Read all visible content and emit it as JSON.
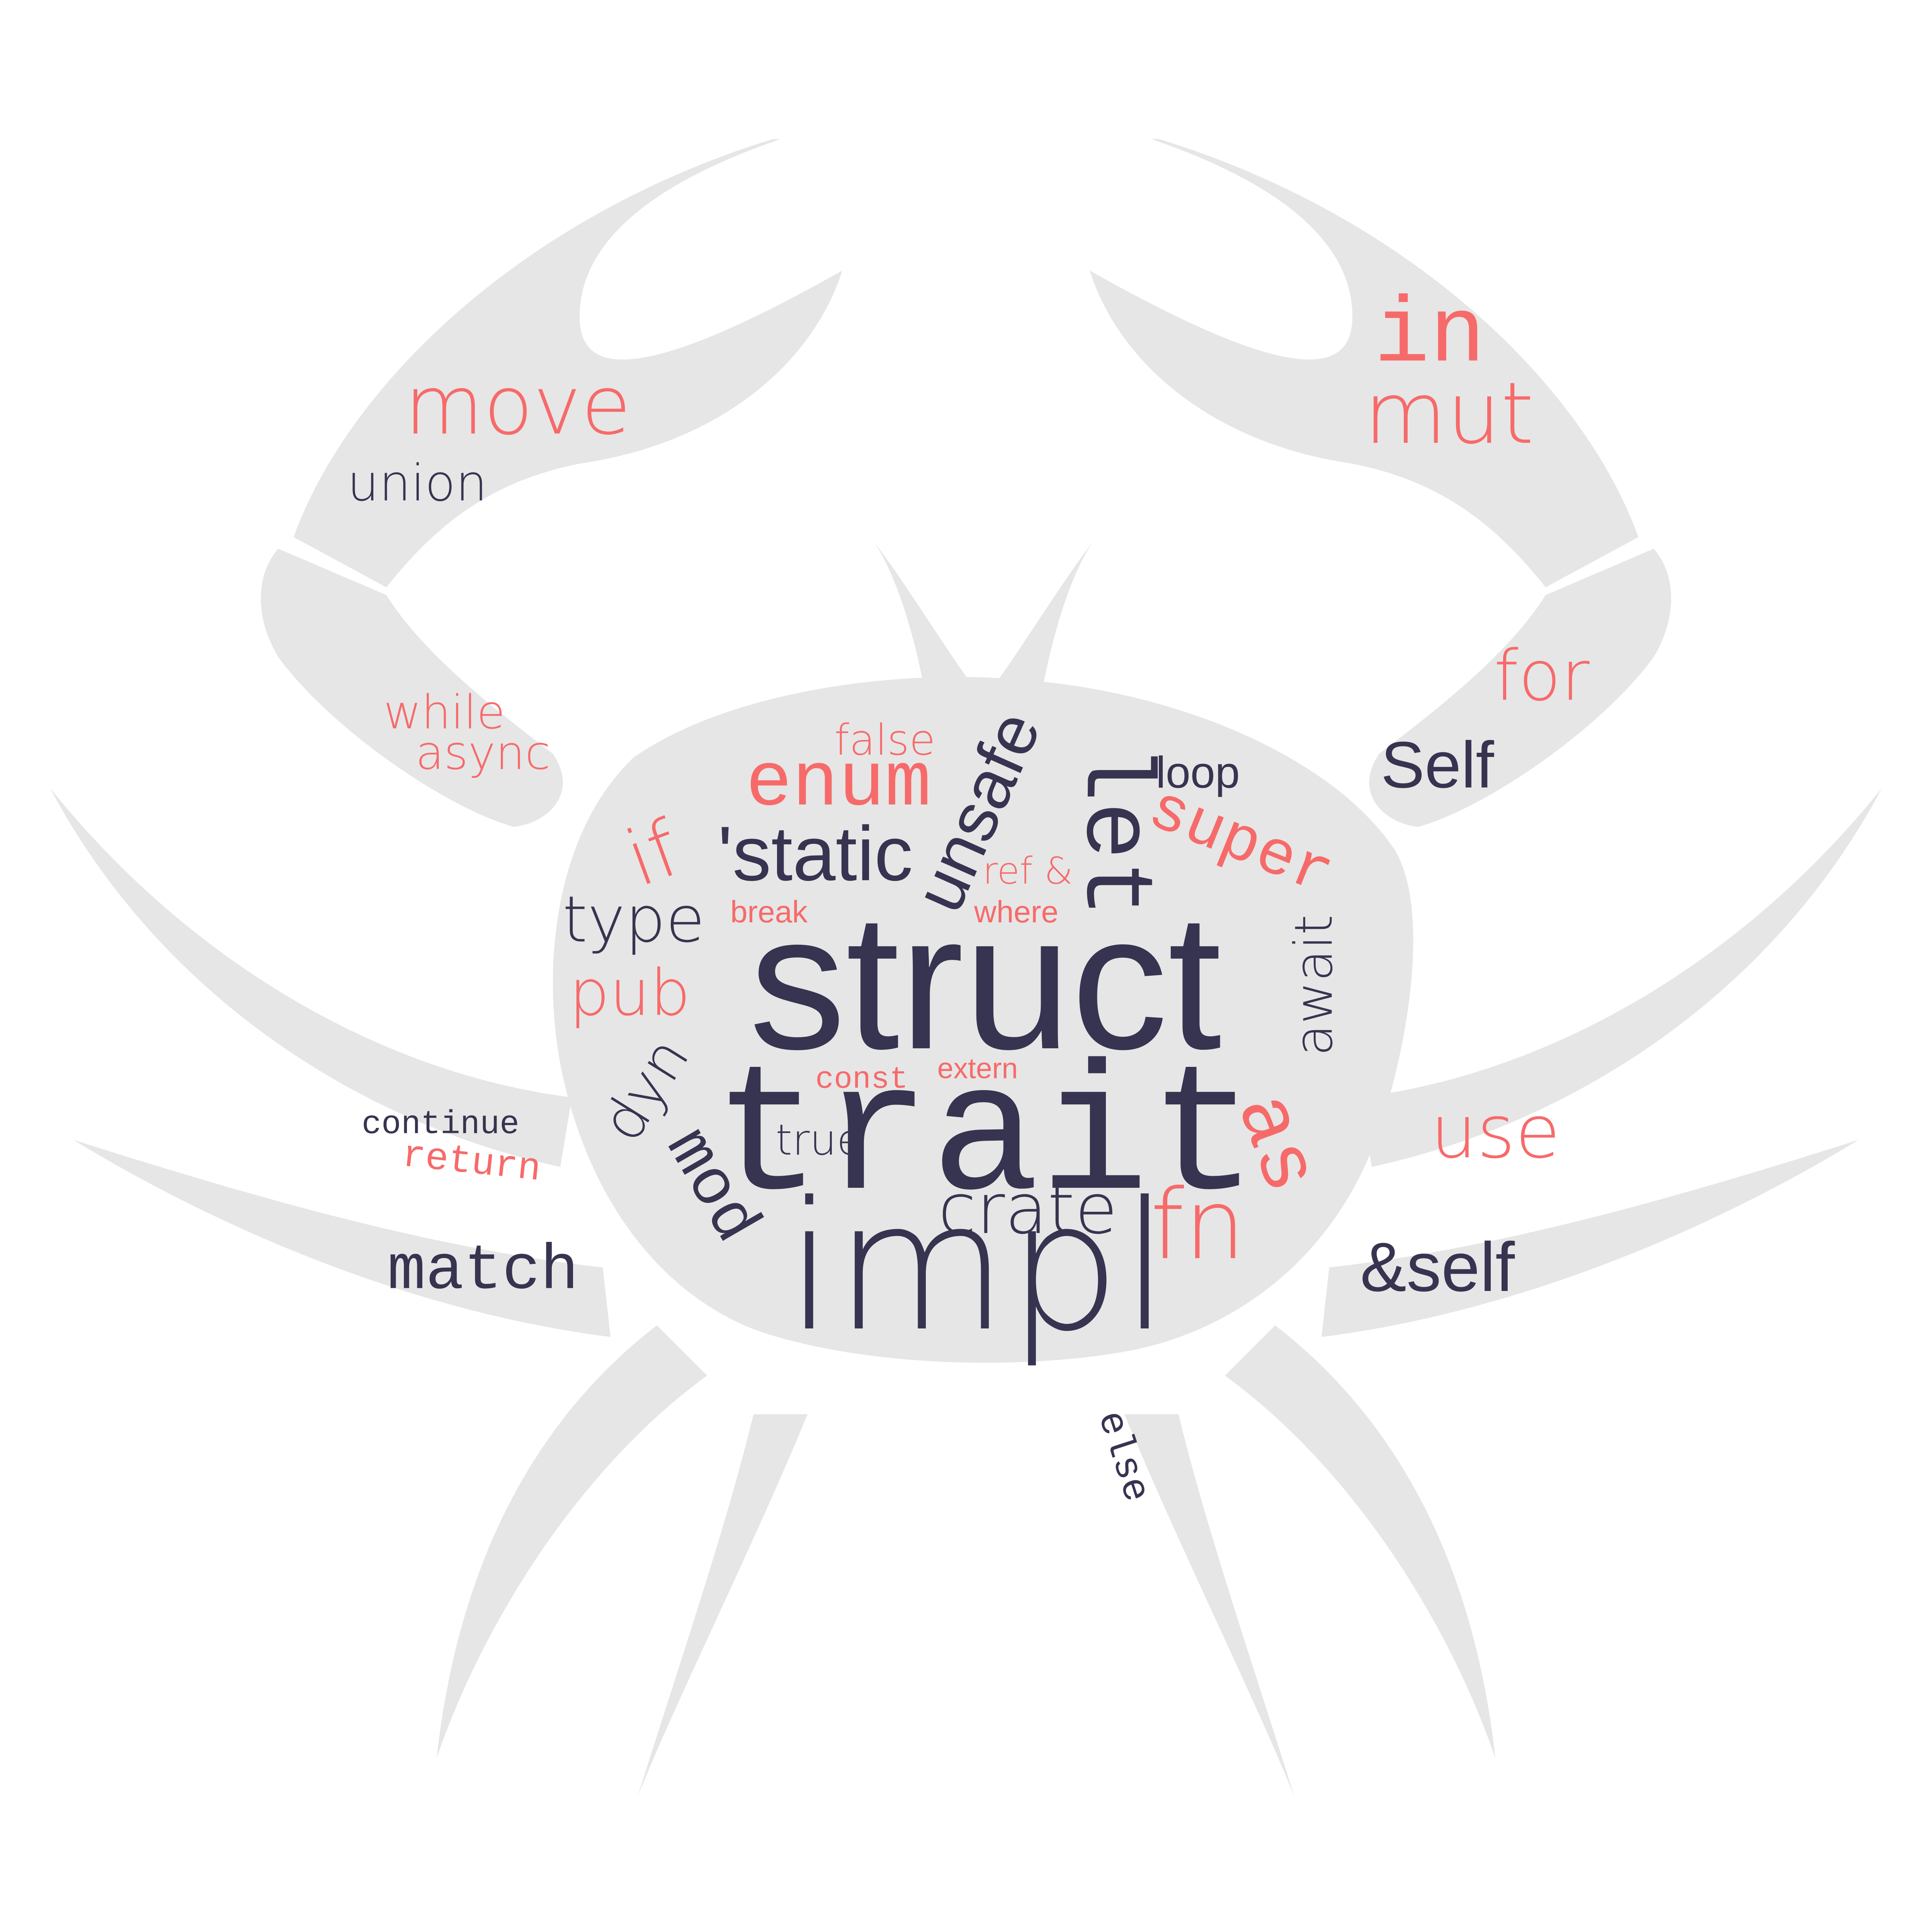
{
  "colors": {
    "background": "#ffffff",
    "crab_silhouette": "#e6e6e6",
    "dark_word": "#363450",
    "accent_word": "#f76a6a"
  },
  "silhouette": {
    "shape": "crab",
    "icon": "crab-silhouette"
  },
  "words": [
    {
      "id": "struct",
      "text": "struct",
      "tone": "dark"
    },
    {
      "id": "trait",
      "text": "trait",
      "tone": "dark"
    },
    {
      "id": "impl",
      "text": "impl",
      "tone": "dark"
    },
    {
      "id": "let",
      "text": "let",
      "tone": "dark"
    },
    {
      "id": "static",
      "text": "'static",
      "tone": "dark"
    },
    {
      "id": "unsafe",
      "text": "unsafe",
      "tone": "dark"
    },
    {
      "id": "enum",
      "text": "enum",
      "tone": "accent"
    },
    {
      "id": "if",
      "text": "if",
      "tone": "accent"
    },
    {
      "id": "type",
      "text": "type",
      "tone": "dark"
    },
    {
      "id": "pub",
      "text": "pub",
      "tone": "accent"
    },
    {
      "id": "dyn",
      "text": "dyn",
      "tone": "dark"
    },
    {
      "id": "mod",
      "text": "mod",
      "tone": "dark"
    },
    {
      "id": "crate",
      "text": "crate",
      "tone": "dark"
    },
    {
      "id": "fn",
      "text": "fn",
      "tone": "accent"
    },
    {
      "id": "as",
      "text": "as",
      "tone": "accent"
    },
    {
      "id": "await",
      "text": "await",
      "tone": "dark"
    },
    {
      "id": "super",
      "text": "super",
      "tone": "accent"
    },
    {
      "id": "loop",
      "text": "loop",
      "tone": "dark"
    },
    {
      "id": "false",
      "text": "false",
      "tone": "accent"
    },
    {
      "id": "ref",
      "text": "ref &",
      "tone": "accent"
    },
    {
      "id": "where",
      "text": "where",
      "tone": "accent"
    },
    {
      "id": "break",
      "text": "break",
      "tone": "accent"
    },
    {
      "id": "const",
      "text": "const",
      "tone": "accent"
    },
    {
      "id": "extern",
      "text": "extern",
      "tone": "accent"
    },
    {
      "id": "true",
      "text": "true",
      "tone": "dark"
    },
    {
      "id": "move",
      "text": "move",
      "tone": "accent"
    },
    {
      "id": "union",
      "text": "union",
      "tone": "dark"
    },
    {
      "id": "in",
      "text": "in",
      "tone": "accent"
    },
    {
      "id": "mut",
      "text": "mut",
      "tone": "accent"
    },
    {
      "id": "for",
      "text": "for",
      "tone": "accent"
    },
    {
      "id": "self-type",
      "text": "Self",
      "tone": "dark"
    },
    {
      "id": "while",
      "text": "while",
      "tone": "accent"
    },
    {
      "id": "async",
      "text": "async",
      "tone": "accent"
    },
    {
      "id": "continue",
      "text": "continue",
      "tone": "dark"
    },
    {
      "id": "return",
      "text": "return",
      "tone": "accent"
    },
    {
      "id": "match",
      "text": "match",
      "tone": "dark"
    },
    {
      "id": "use",
      "text": "use",
      "tone": "accent"
    },
    {
      "id": "self-ref",
      "text": "&self",
      "tone": "dark"
    },
    {
      "id": "else",
      "text": "else",
      "tone": "dark"
    }
  ]
}
